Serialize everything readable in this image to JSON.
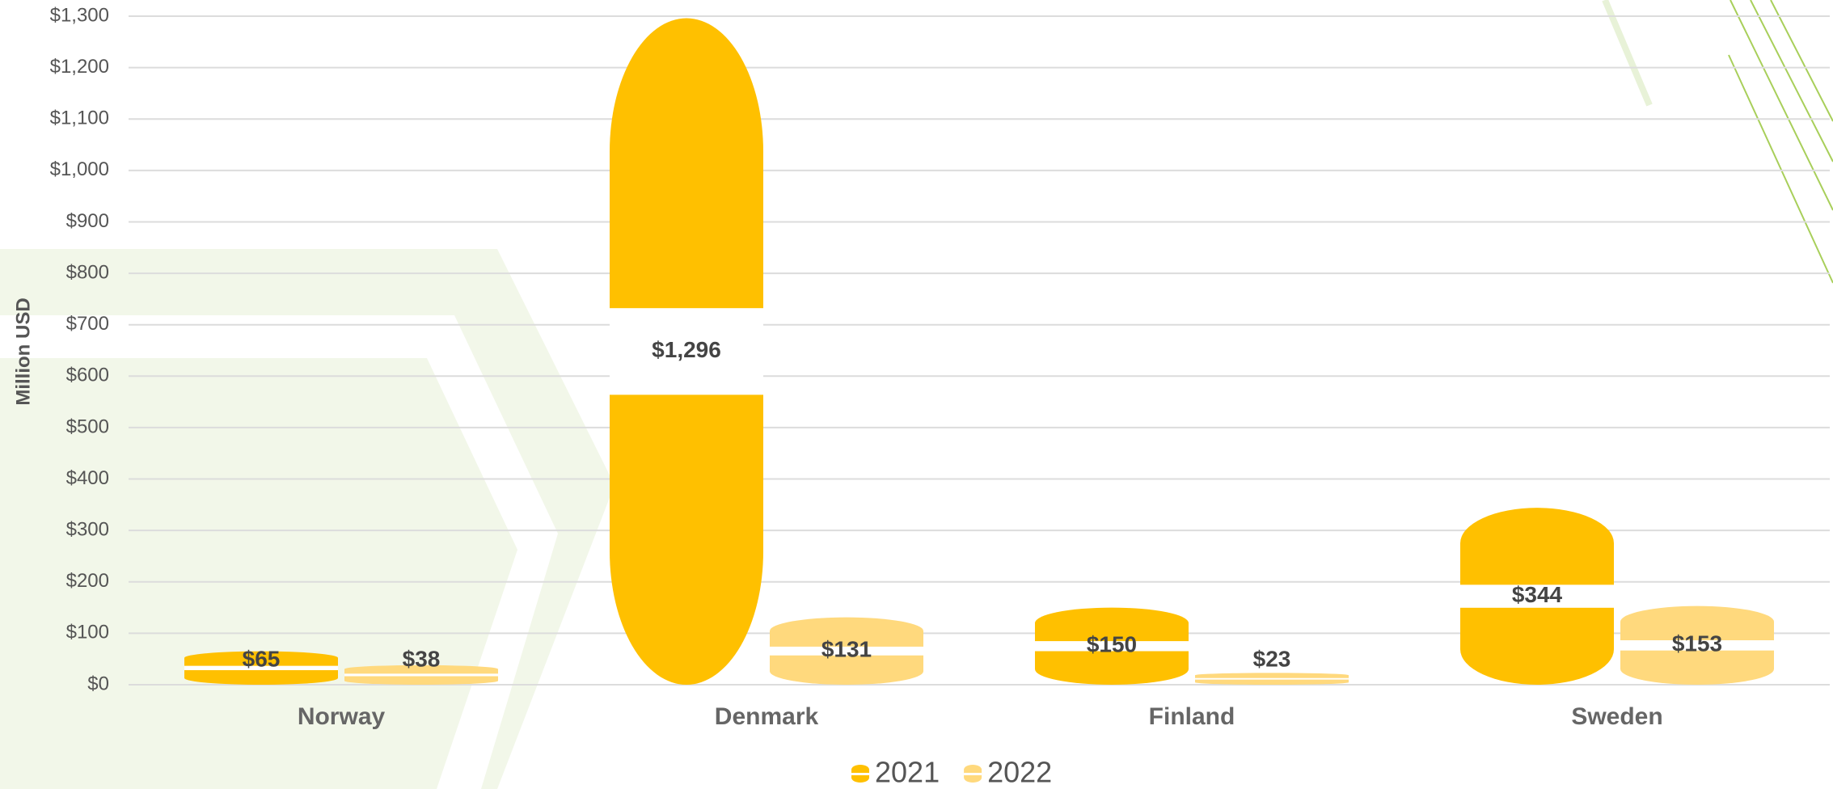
{
  "chart_data": {
    "type": "bar",
    "y_label": "Million USD",
    "categories": [
      "Norway",
      "Denmark",
      "Finland",
      "Sweden"
    ],
    "series": [
      {
        "name": "2021",
        "color": "#ffc000",
        "values": [
          65,
          1296,
          150,
          344
        ],
        "value_labels": [
          "$65",
          "$1,296",
          "$150",
          "$344"
        ]
      },
      {
        "name": "2022",
        "color": "#ffd97d",
        "values": [
          38,
          131,
          23,
          153
        ],
        "value_labels": [
          "$38",
          "$131",
          "$23",
          "$153"
        ]
      }
    ],
    "ylim": [
      0,
      1300
    ],
    "yticks": [
      {
        "value": 0,
        "label": "$0"
      },
      {
        "value": 100,
        "label": "$100"
      },
      {
        "value": 200,
        "label": "$200"
      },
      {
        "value": 300,
        "label": "$300"
      },
      {
        "value": 400,
        "label": "$400"
      },
      {
        "value": 500,
        "label": "$500"
      },
      {
        "value": 600,
        "label": "$600"
      },
      {
        "value": 700,
        "label": "$700"
      },
      {
        "value": 800,
        "label": "$800"
      },
      {
        "value": 900,
        "label": "$900"
      },
      {
        "value": 1000,
        "label": "$1,000"
      },
      {
        "value": 1100,
        "label": "$1,100"
      },
      {
        "value": 1200,
        "label": "$1,200"
      },
      {
        "value": 1300,
        "label": "$1,300"
      }
    ],
    "grid": true,
    "legend": "bottom"
  }
}
